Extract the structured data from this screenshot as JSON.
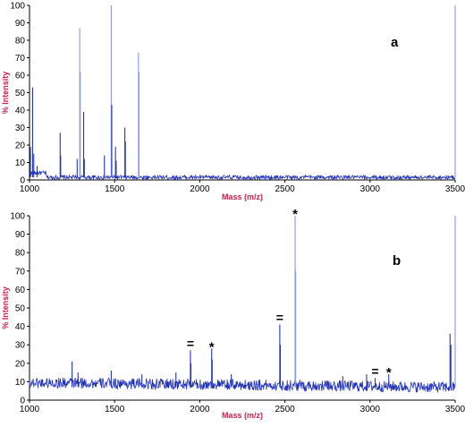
{
  "colors": {
    "trace": "#2233bb",
    "trace_light": "#8898e0",
    "axis_title": "#cc1f4a",
    "axis": "#000000"
  },
  "chart_data": [
    {
      "type": "line",
      "panel_label": "a",
      "xlabel": "Mass (m/z)",
      "ylabel": "% Intensity",
      "xlim": [
        1000,
        3500
      ],
      "ylim": [
        0,
        100
      ],
      "x_ticks": [
        "1000",
        "1500",
        "2000",
        "2500",
        "3000",
        "3500"
      ],
      "y_ticks": [
        "0",
        "10",
        "20",
        "30",
        "40",
        "50",
        "60",
        "70",
        "80",
        "90",
        "100"
      ],
      "baseline": 1.5,
      "noise": 1.2,
      "peaks": [
        {
          "x": 1005,
          "y": 19
        },
        {
          "x": 1018,
          "y": 53
        },
        {
          "x": 1025,
          "y": 15
        },
        {
          "x": 1045,
          "y": 8
        },
        {
          "x": 1180,
          "y": 27
        },
        {
          "x": 1183,
          "y": 14
        },
        {
          "x": 1280,
          "y": 12
        },
        {
          "x": 1295,
          "y": 87
        },
        {
          "x": 1298,
          "y": 62
        },
        {
          "x": 1318,
          "y": 39
        },
        {
          "x": 1322,
          "y": 12
        },
        {
          "x": 1440,
          "y": 14
        },
        {
          "x": 1480,
          "y": 100
        },
        {
          "x": 1483,
          "y": 43
        },
        {
          "x": 1505,
          "y": 19
        },
        {
          "x": 1509,
          "y": 11
        },
        {
          "x": 1560,
          "y": 30
        },
        {
          "x": 1563,
          "y": 22
        },
        {
          "x": 1640,
          "y": 73
        },
        {
          "x": 1643,
          "y": 62
        },
        {
          "x": 3500,
          "y": 100
        }
      ],
      "markers": []
    },
    {
      "type": "line",
      "panel_label": "b",
      "xlabel": "Mass (m/z)",
      "ylabel": "% Intensity",
      "xlim": [
        1000,
        3500
      ],
      "ylim": [
        0,
        100
      ],
      "x_ticks": [
        "1000",
        "1500",
        "2000",
        "2500",
        "3000",
        "3500"
      ],
      "y_ticks": [
        "0",
        "10",
        "20",
        "30",
        "40",
        "50",
        "60",
        "70",
        "80",
        "90",
        "100"
      ],
      "baseline": 7,
      "noise": 3,
      "peaks": [
        {
          "x": 1250,
          "y": 21
        },
        {
          "x": 1285,
          "y": 15
        },
        {
          "x": 1480,
          "y": 16
        },
        {
          "x": 1660,
          "y": 14
        },
        {
          "x": 1860,
          "y": 15
        },
        {
          "x": 1945,
          "y": 27
        },
        {
          "x": 1948,
          "y": 20
        },
        {
          "x": 2070,
          "y": 28
        },
        {
          "x": 2073,
          "y": 22
        },
        {
          "x": 2185,
          "y": 14
        },
        {
          "x": 2470,
          "y": 41
        },
        {
          "x": 2473,
          "y": 30
        },
        {
          "x": 2560,
          "y": 100
        },
        {
          "x": 2563,
          "y": 70
        },
        {
          "x": 2840,
          "y": 13
        },
        {
          "x": 2980,
          "y": 14
        },
        {
          "x": 3030,
          "y": 12
        },
        {
          "x": 3110,
          "y": 14
        },
        {
          "x": 3470,
          "y": 36
        },
        {
          "x": 3475,
          "y": 30
        },
        {
          "x": 3500,
          "y": 100
        }
      ],
      "markers": [
        {
          "x": 1945,
          "y": 27,
          "symbol": "="
        },
        {
          "x": 2070,
          "y": 28,
          "symbol": "*"
        },
        {
          "x": 2470,
          "y": 41,
          "symbol": "="
        },
        {
          "x": 2560,
          "y": 100,
          "symbol": "*"
        },
        {
          "x": 3030,
          "y": 12,
          "symbol": "="
        },
        {
          "x": 3110,
          "y": 14,
          "symbol": "*"
        }
      ]
    }
  ]
}
